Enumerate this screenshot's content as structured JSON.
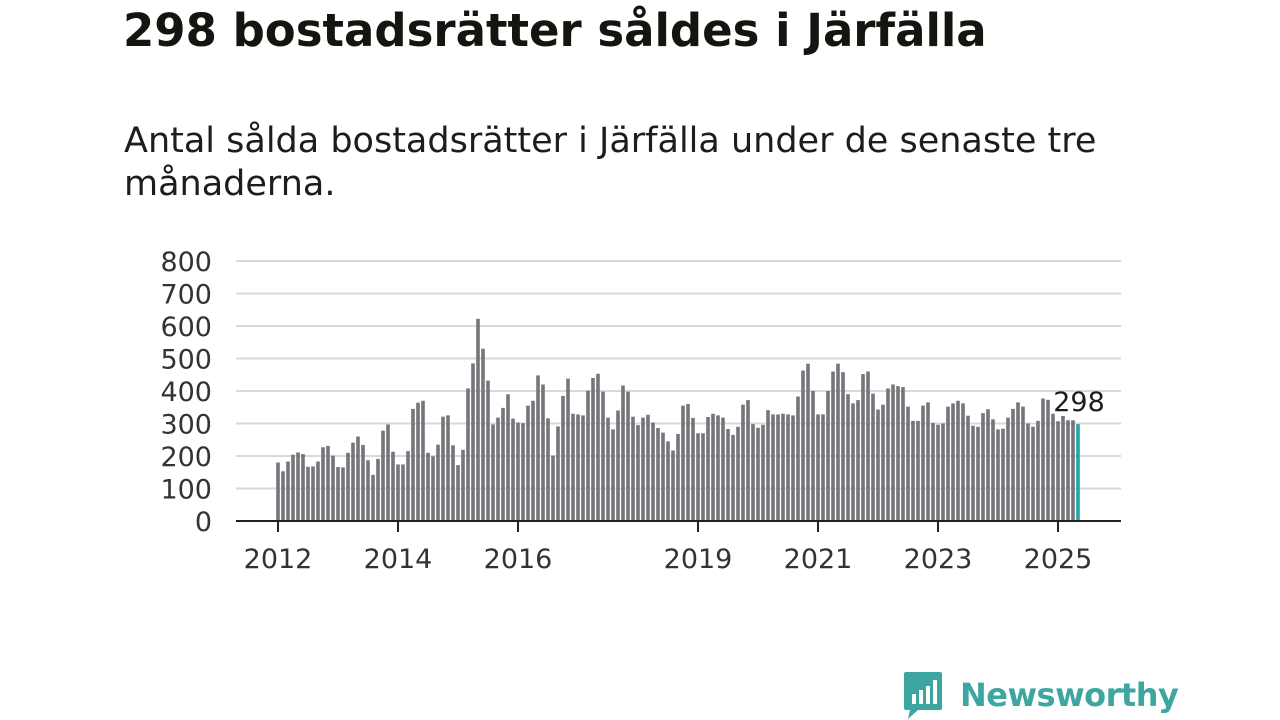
{
  "header": {
    "title": "298 bostadsrätter såldes i Järfälla",
    "subtitle": "Antal sålda bostadsrätter i Järfälla under de senaste tre månaderna."
  },
  "brand": {
    "name": "Newsworthy",
    "color": "#3ea6a0",
    "icon": "bar-chart-speech-bubble-icon"
  },
  "chart_data": {
    "type": "bar",
    "title": "",
    "xlabel": "",
    "ylabel": "",
    "ylim": [
      0,
      800
    ],
    "yticks": [
      0,
      100,
      200,
      300,
      400,
      500,
      600,
      700,
      800
    ],
    "x_tick_labels": [
      {
        "label": "2012",
        "index": 0
      },
      {
        "label": "2014",
        "index": 24
      },
      {
        "label": "2016",
        "index": 48
      },
      {
        "label": "2019",
        "index": 84
      },
      {
        "label": "2021",
        "index": 108
      },
      {
        "label": "2023",
        "index": 132
      },
      {
        "label": "2025",
        "index": 156
      }
    ],
    "grid": true,
    "bar_color": "#77757b",
    "highlight_color": "#1fa5a5",
    "highlight_index": 160,
    "annotation": {
      "label": "298",
      "index": 160
    },
    "start": "2012-01",
    "frequency": "monthly",
    "values": [
      180,
      153,
      183,
      204,
      211,
      206,
      167,
      168,
      183,
      227,
      231,
      201,
      166,
      165,
      210,
      241,
      260,
      234,
      187,
      142,
      191,
      278,
      297,
      213,
      174,
      174,
      215,
      345,
      364,
      370,
      210,
      199,
      235,
      321,
      325,
      233,
      172,
      219,
      408,
      485,
      622,
      530,
      432,
      297,
      318,
      348,
      390,
      315,
      303,
      301,
      355,
      370,
      448,
      420,
      316,
      201,
      291,
      385,
      438,
      330,
      328,
      325,
      401,
      440,
      453,
      398,
      318,
      282,
      340,
      417,
      398,
      321,
      295,
      318,
      327,
      303,
      286,
      272,
      245,
      217,
      268,
      355,
      360,
      317,
      270,
      270,
      320,
      330,
      325,
      318,
      283,
      265,
      290,
      358,
      372,
      298,
      287,
      296,
      341,
      328,
      328,
      330,
      328,
      325,
      383,
      463,
      484,
      400,
      328,
      328,
      400,
      460,
      484,
      458,
      390,
      362,
      372,
      452,
      460,
      392,
      343,
      358,
      408,
      420,
      415,
      412,
      352,
      308,
      308,
      355,
      365,
      302,
      296,
      300,
      352,
      362,
      370,
      362,
      324,
      293,
      290,
      332,
      344,
      313,
      282,
      284,
      318,
      345,
      365,
      352,
      300,
      290,
      308,
      377,
      373,
      330,
      307,
      323,
      310,
      310,
      298
    ]
  }
}
